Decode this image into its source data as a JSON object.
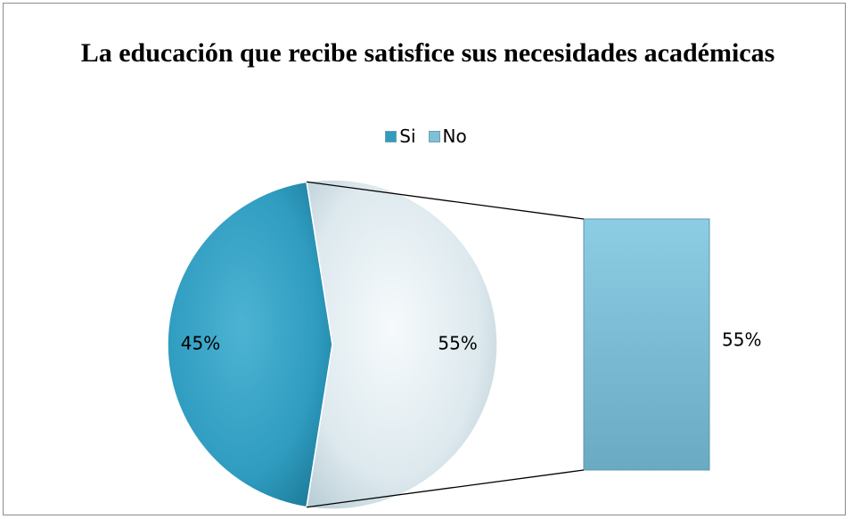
{
  "chart_data": {
    "type": "pie",
    "title": "La educación que recibe satisfice sus necesidades académicas",
    "categories": [
      "Si",
      "No"
    ],
    "values": [
      45,
      55
    ],
    "labels": [
      "45%",
      "55%"
    ],
    "bar_of_pie": {
      "category": "No",
      "value": 55,
      "label": "55%"
    },
    "legend": {
      "position": "top",
      "entries": [
        "Si",
        "No"
      ]
    },
    "colors": {
      "Si": "#2f9cc0",
      "No": "#dde9ee",
      "bar": "#7fc0d9"
    }
  }
}
